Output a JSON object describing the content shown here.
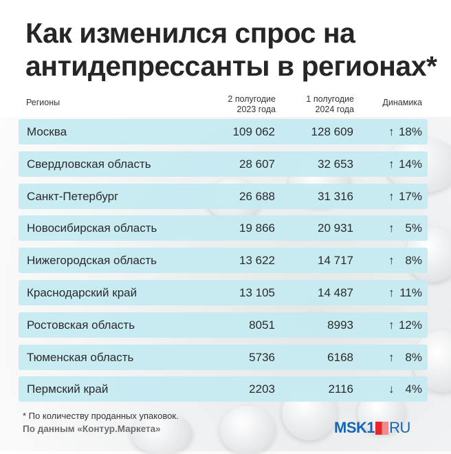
{
  "title": "Как изменился спрос на антидепрессанты в регионах*",
  "headers": {
    "region": "Регионы",
    "h2_2023": "2 полугодие\n2023 года",
    "h1_2024": "1 полугодие\n2024 года",
    "dynamics": "Динамика"
  },
  "rows": [
    {
      "region": "Москва",
      "v2023": "109 062",
      "v2024": "128 609",
      "arrow": "↑",
      "pct": "18%"
    },
    {
      "region": "Свердловская область",
      "v2023": "28 607",
      "v2024": "32 653",
      "arrow": "↑",
      "pct": "14%"
    },
    {
      "region": "Санкт-Петербург",
      "v2023": "26 688",
      "v2024": "31 316",
      "arrow": "↑",
      "pct": "17%"
    },
    {
      "region": "Новосибирская область",
      "v2023": "19 866",
      "v2024": "20 931",
      "arrow": "↑",
      "pct": "5%"
    },
    {
      "region": "Нижегородская область",
      "v2023": "13 622",
      "v2024": "14 717",
      "arrow": "↑",
      "pct": "8%"
    },
    {
      "region": "Краснодарский край",
      "v2023": "13 105",
      "v2024": "14 487",
      "arrow": "↑",
      "pct": "11%"
    },
    {
      "region": "Ростовская область",
      "v2023": "8051",
      "v2024": "8993",
      "arrow": "↑",
      "pct": "12%"
    },
    {
      "region": "Тюменская область",
      "v2023": "5736",
      "v2024": "6168",
      "arrow": "↑",
      "pct": "8%"
    },
    {
      "region": "Пермский край",
      "v2023": "2203",
      "v2024": "2116",
      "arrow": "↓",
      "pct": "4%"
    }
  ],
  "footnote": "* По количеству проданных упаковок.",
  "source": "По данным «Контур.Маркета»",
  "logo": {
    "left": "MSK1",
    "right": "RU"
  },
  "colors": {
    "row_bg": "#c5e9f1",
    "logo_blue": "#1565b5",
    "logo_red": "#e5262c"
  }
}
